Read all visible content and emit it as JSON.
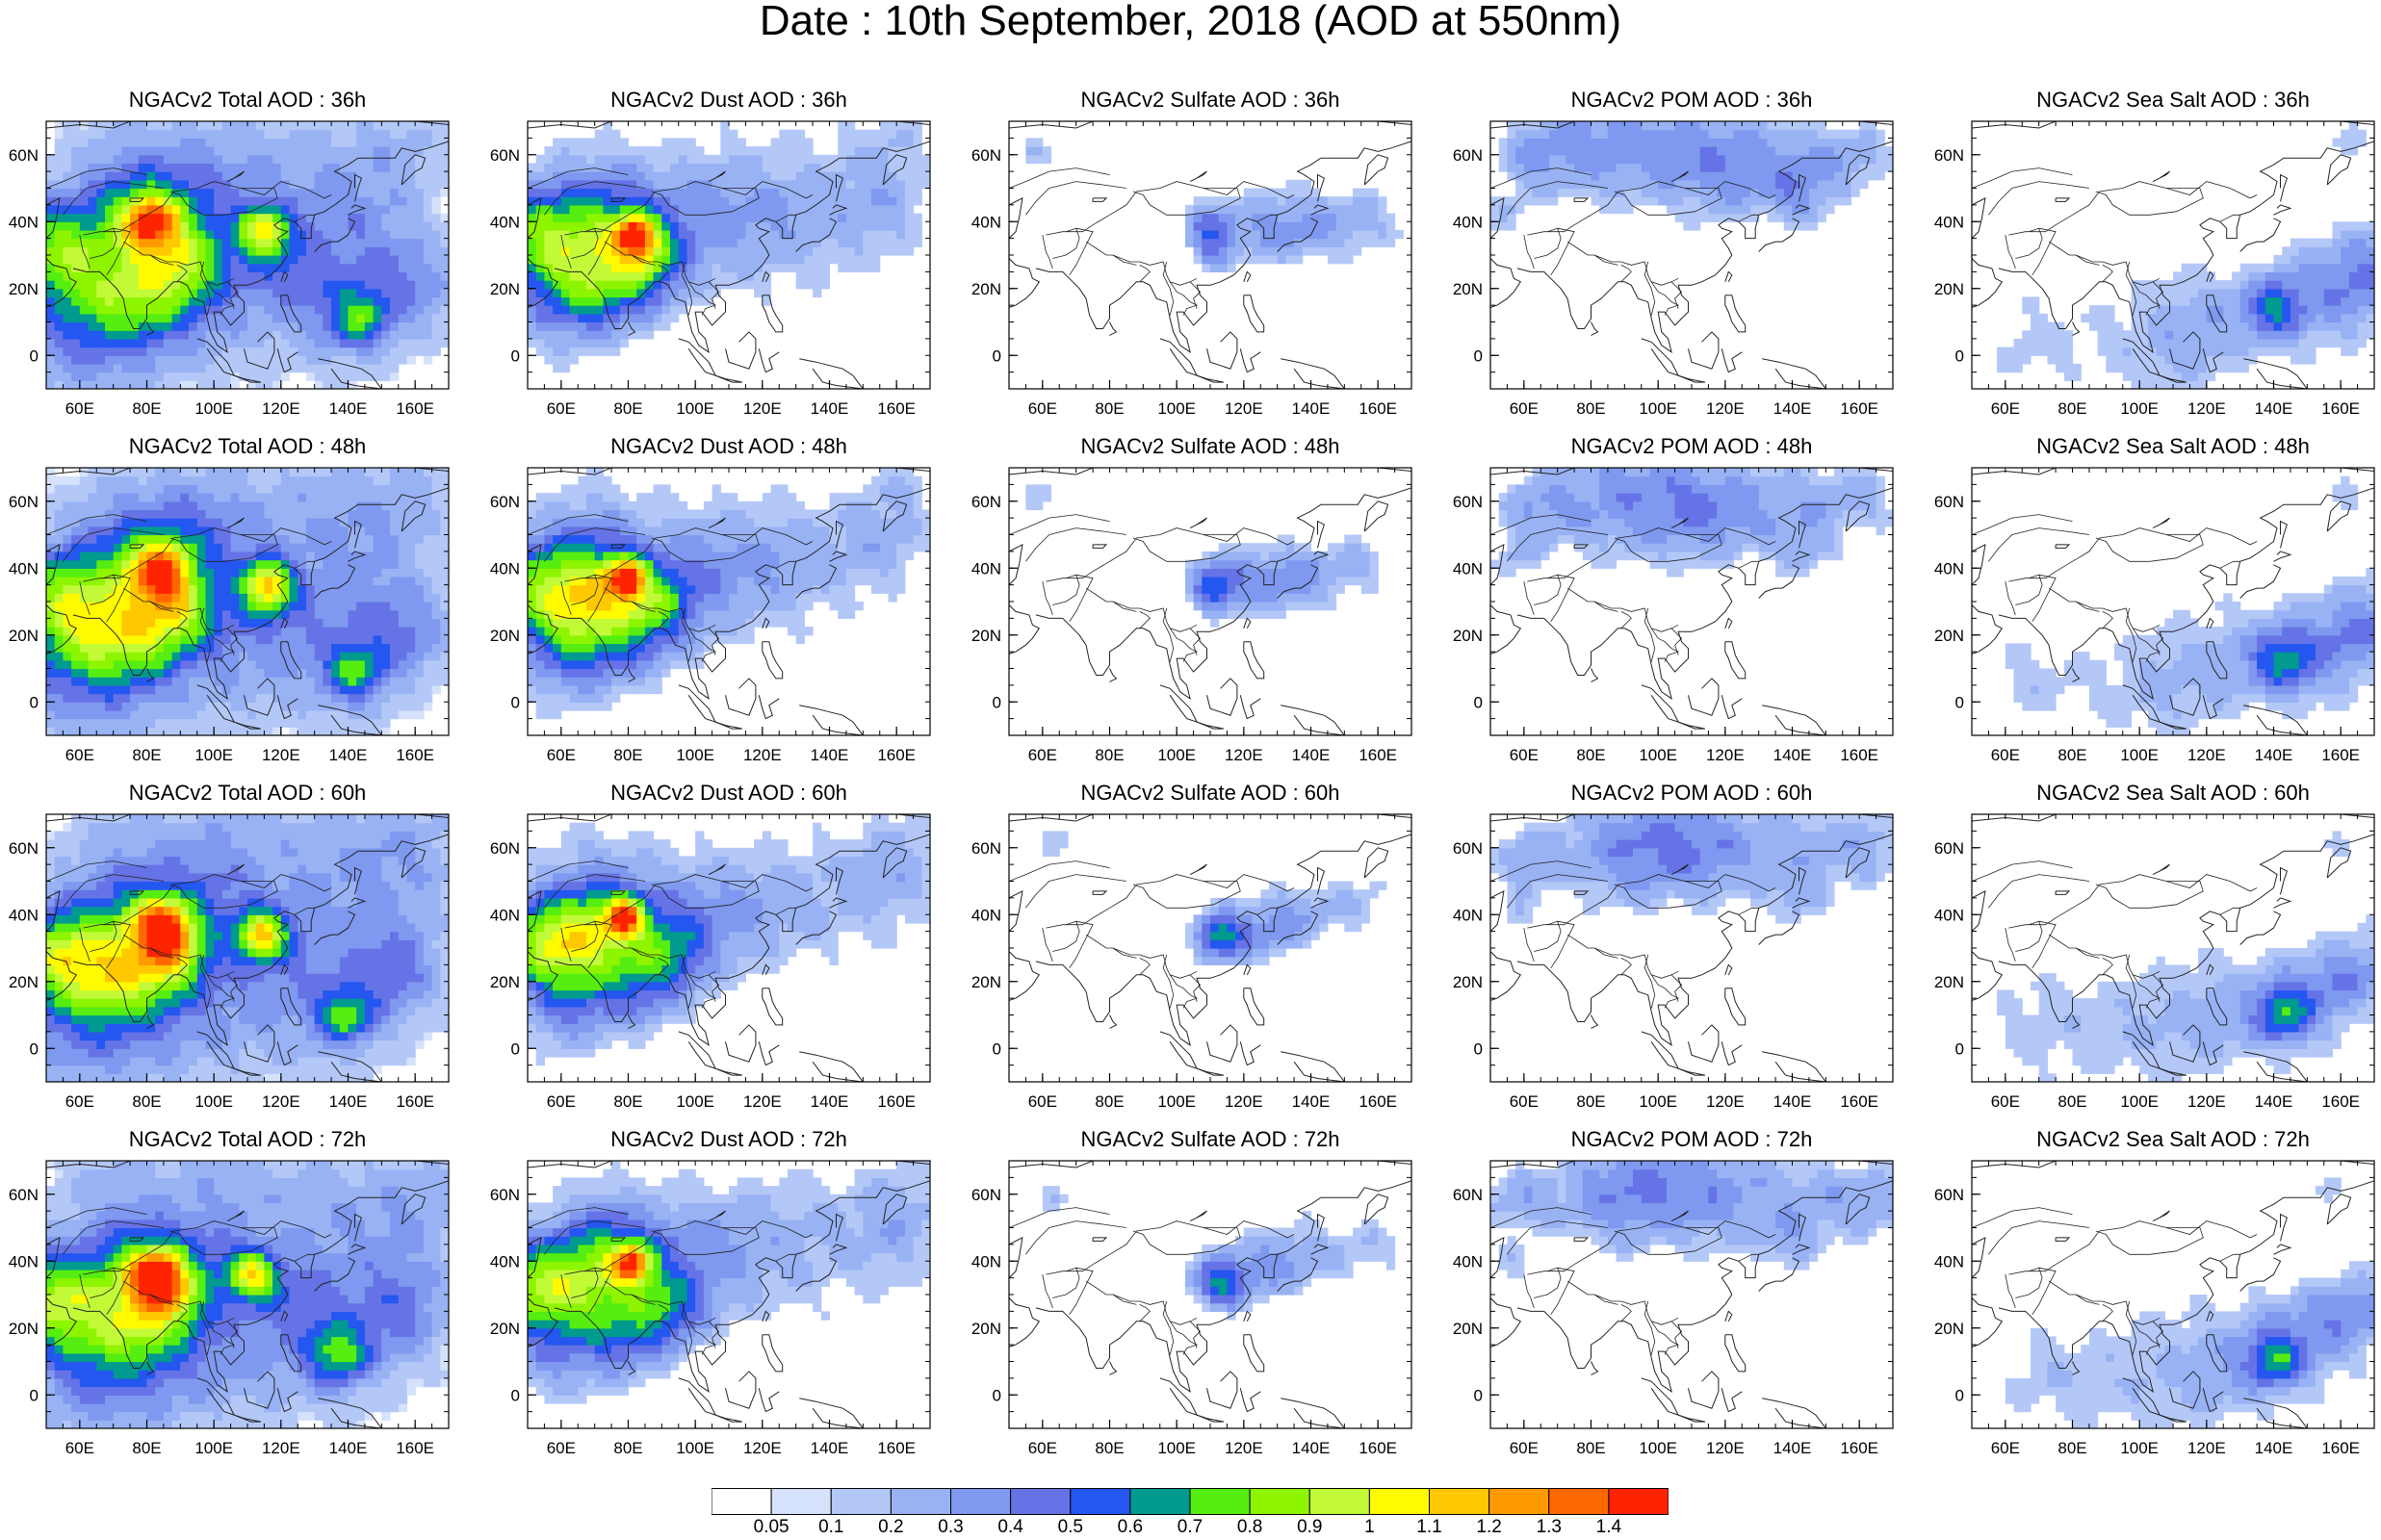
{
  "title": "Date : 10th September, 2018 (AOD at 550nm)",
  "panels": [
    [
      "NGACv2 Total AOD : 36h",
      "NGACv2 Dust AOD : 36h",
      "NGACv2 Sulfate AOD : 36h",
      "NGACv2 POM AOD : 36h",
      "NGACv2 Sea Salt AOD : 36h"
    ],
    [
      "NGACv2 Total AOD : 48h",
      "NGACv2 Dust AOD : 48h",
      "NGACv2 Sulfate AOD : 48h",
      "NGACv2 POM AOD : 48h",
      "NGACv2 Sea Salt AOD : 48h"
    ],
    [
      "NGACv2 Total AOD : 60h",
      "NGACv2 Dust AOD : 60h",
      "NGACv2 Sulfate AOD : 60h",
      "NGACv2 POM AOD : 60h",
      "NGACv2 Sea Salt AOD : 60h"
    ],
    [
      "NGACv2 Total AOD : 72h",
      "NGACv2 Dust AOD : 72h",
      "NGACv2 Sulfate AOD : 72h",
      "NGACv2 POM AOD : 72h",
      "NGACv2 Sea Salt  AOD : 72h"
    ]
  ],
  "map": {
    "lon_range": [
      50,
      170
    ],
    "lat_range": [
      -10,
      70
    ],
    "lon_ticks": [
      "60E",
      "80E",
      "100E",
      "120E",
      "140E",
      "160E"
    ],
    "lat_ticks": [
      "60N",
      "40N",
      "20N",
      "0"
    ]
  },
  "colorbar": {
    "colors": [
      "#ffffff",
      "#d6e2fb",
      "#b4c8f8",
      "#98b2f4",
      "#7e99ef",
      "#6673e6",
      "#2456f0",
      "#009a8e",
      "#55ee10",
      "#8ef500",
      "#c2fa38",
      "#fffa00",
      "#ffc800",
      "#ff9a00",
      "#ff6800",
      "#ff2400"
    ],
    "labels": [
      "0.05",
      "0.1",
      "0.2",
      "0.3",
      "0.4",
      "0.5",
      "0.6",
      "0.7",
      "0.8",
      "0.9",
      "1",
      "1.1",
      "1.2",
      "1.3",
      "1.4"
    ]
  }
}
